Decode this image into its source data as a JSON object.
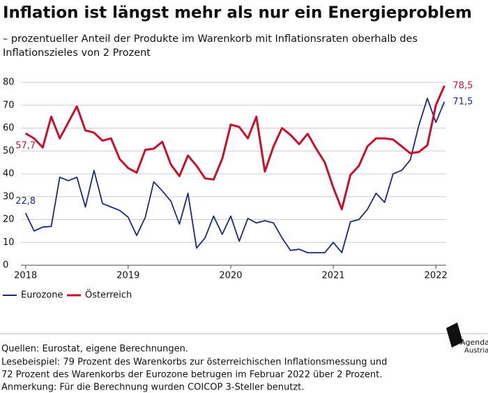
{
  "chart_data": {
    "type": "line",
    "title": "Inflation ist längst mehr als nur ein Energieproblem",
    "subtitle": [
      "– prozentueller Anteil der Produkte im Warenkorb mit Inflationsraten oberhalb des",
      "Inflationszieles von 2 Prozent"
    ],
    "x": [
      2018,
      2018.083,
      2018.167,
      2018.25,
      2018.333,
      2018.417,
      2018.5,
      2018.583,
      2018.667,
      2018.75,
      2018.833,
      2018.917,
      2019,
      2019.083,
      2019.167,
      2019.25,
      2019.333,
      2019.417,
      2019.5,
      2019.583,
      2019.667,
      2019.75,
      2019.833,
      2019.917,
      2020,
      2020.083,
      2020.167,
      2020.25,
      2020.333,
      2020.417,
      2020.5,
      2020.583,
      2020.667,
      2020.75,
      2020.833,
      2020.917,
      2021,
      2021.083,
      2021.167,
      2021.25,
      2021.333,
      2021.417,
      2021.5,
      2021.583,
      2021.667,
      2021.75,
      2021.833,
      2021.917,
      2022,
      2022.083
    ],
    "series": [
      {
        "name": "Eurozone",
        "color": "#1b2a7b",
        "values": [
          22.8,
          15,
          16.7,
          17,
          38.5,
          37,
          38.5,
          25.5,
          41.5,
          27,
          25.5,
          24,
          21,
          13,
          21,
          36.5,
          32.5,
          28,
          18,
          31.5,
          7.5,
          12,
          21.5,
          13.5,
          21.5,
          10.5,
          20.5,
          18.5,
          19.5,
          18.5,
          12,
          6.5,
          7,
          5.5,
          5.5,
          5.5,
          10,
          5.5,
          19,
          20,
          24.5,
          31.5,
          27.5,
          40,
          41.5,
          46,
          61,
          73,
          62.5,
          71.5
        ],
        "value_labels": [
          "22,8",
          null,
          null,
          null,
          null,
          null,
          null,
          null,
          null,
          null,
          null,
          null,
          null,
          null,
          null,
          null,
          null,
          null,
          null,
          null,
          null,
          null,
          null,
          null,
          null,
          null,
          null,
          null,
          null,
          null,
          null,
          null,
          null,
          null,
          null,
          null,
          null,
          null,
          null,
          null,
          null,
          null,
          null,
          null,
          null,
          null,
          null,
          null,
          null,
          "71,5"
        ]
      },
      {
        "name": "Österreich",
        "color": "#c8102e",
        "values": [
          57.7,
          55.5,
          51.5,
          65,
          55.5,
          62.5,
          69.5,
          59,
          58,
          54.5,
          55.5,
          46.5,
          42.5,
          40.5,
          50.5,
          51,
          54,
          44,
          39,
          48,
          43.5,
          38,
          37.5,
          46.5,
          61.5,
          60.5,
          55.5,
          65,
          41,
          52,
          60,
          57,
          53,
          57.5,
          51,
          45,
          34,
          24.5,
          39.5,
          43.5,
          52,
          55.5,
          55.5,
          55,
          52,
          49,
          49.5,
          52.5,
          70,
          78.5
        ],
        "value_labels": [
          "57,7",
          null,
          null,
          null,
          null,
          null,
          null,
          null,
          null,
          null,
          null,
          null,
          null,
          null,
          null,
          null,
          null,
          null,
          null,
          null,
          null,
          null,
          null,
          null,
          null,
          null,
          null,
          null,
          null,
          null,
          null,
          null,
          null,
          null,
          null,
          null,
          null,
          null,
          null,
          null,
          null,
          null,
          null,
          null,
          null,
          null,
          null,
          null,
          null,
          "78,5"
        ]
      }
    ],
    "xlim": [
      2017.9,
      2022.25
    ],
    "xticks": [
      2018,
      2019,
      2020,
      2021,
      2022
    ],
    "ylim": [
      0,
      80
    ],
    "yticks": [
      0,
      10,
      20,
      30,
      40,
      50,
      60,
      70,
      80
    ],
    "grid": true,
    "legend": "bottom-left"
  },
  "footer": [
    "Quellen: Eurostat, eigene Berechnungen.",
    "Lesebeispiel: 79 Prozent des Warenkorbs zur österreichischen Inflationsmessung und",
    "72 Prozent des Warenkorbs der Eurozone betrugen im Februar 2022 über 2 Prozent.",
    "Anmerkung: Für die Berechnung wurden COICOP 3-Steller benutzt."
  ],
  "logo": [
    "Agenda",
    "Austria"
  ]
}
